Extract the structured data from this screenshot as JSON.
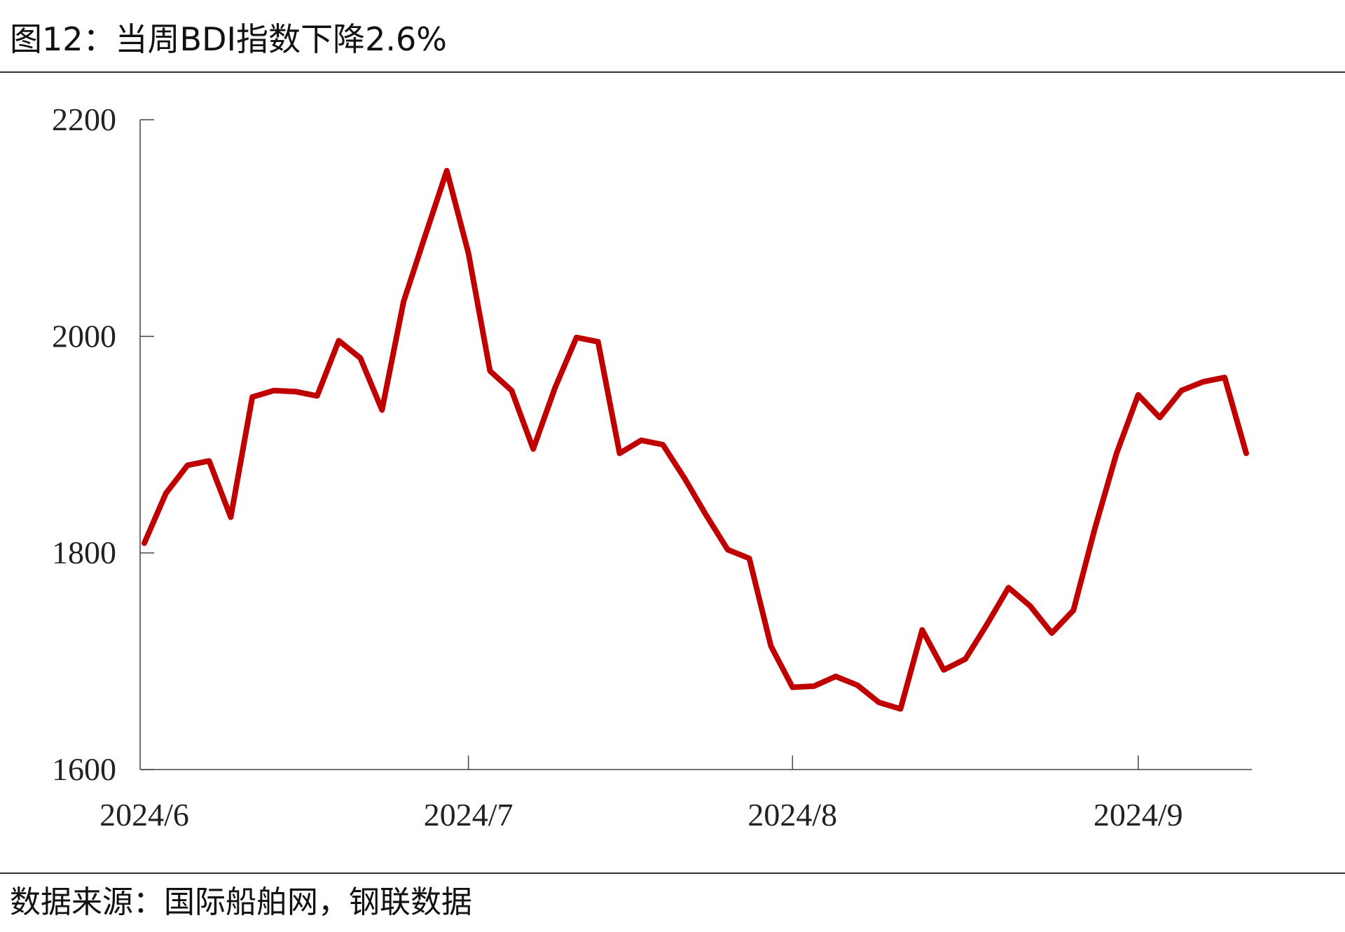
{
  "title": "图12：当周BDI指数下降2.6%",
  "source": "数据来源：国际船舶网，钢联数据",
  "chart_data": {
    "type": "line",
    "categories": [
      "2024/6",
      null,
      null,
      null,
      null,
      null,
      null,
      null,
      null,
      null,
      null,
      null,
      null,
      null,
      null,
      "2024/7",
      null,
      null,
      null,
      null,
      null,
      null,
      null,
      null,
      null,
      null,
      null,
      null,
      null,
      null,
      "2024/8",
      null,
      null,
      null,
      null,
      null,
      null,
      null,
      null,
      null,
      null,
      null,
      null,
      null,
      null,
      null,
      "2024/9",
      null,
      null,
      null,
      null,
      null
    ],
    "series": [
      {
        "name": "BDI",
        "color": "#c00000",
        "values": [
          1809,
          1855,
          1881,
          1885,
          1833,
          1944,
          1950,
          1949,
          1945,
          1996,
          1980,
          1932,
          2032,
          2093,
          2153,
          2077,
          1968,
          1950,
          1896,
          1952,
          1999,
          1995,
          1892,
          1904,
          1900,
          1869,
          1835,
          1803,
          1795,
          1714,
          1676,
          1677,
          1686,
          1678,
          1662,
          1656,
          1729,
          1692,
          1702,
          1734,
          1768,
          1751,
          1726,
          1747,
          1823,
          1892,
          1946,
          1925,
          1950,
          1958,
          1962,
          1892
        ]
      }
    ],
    "ylim": [
      1600,
      2200
    ],
    "yticks": [
      1600,
      1800,
      2000,
      2200
    ]
  }
}
